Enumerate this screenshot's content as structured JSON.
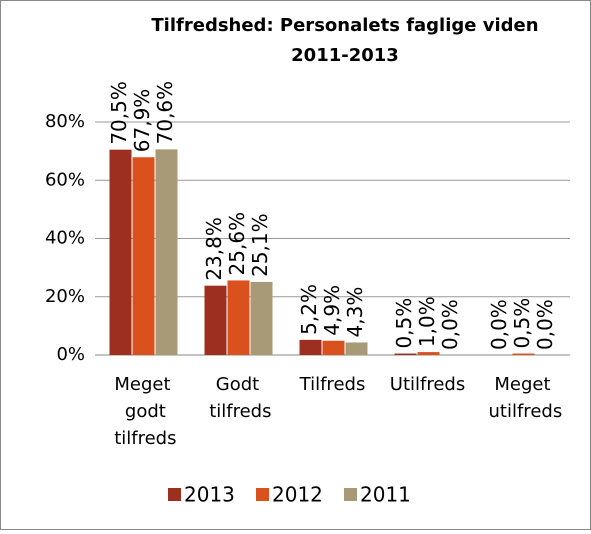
{
  "chart_data": {
    "type": "bar",
    "title": "Tilfredshed: Personalets faglige viden 2011-2013",
    "categories": [
      "Meget godt tilfreds",
      "Godt tilfreds",
      "Tilfreds",
      "Utilfreds",
      "Meget utilfreds"
    ],
    "series": [
      {
        "name": "2013",
        "color": "#9c2f1f",
        "values": [
          70.5,
          23.8,
          5.2,
          0.5,
          0.0
        ],
        "value_labels": [
          "70,5%",
          "23,8%",
          "5,2%",
          "0,5%",
          "0,0%"
        ]
      },
      {
        "name": "2012",
        "color": "#d9511d",
        "values": [
          67.9,
          25.6,
          4.9,
          1.0,
          0.5
        ],
        "value_labels": [
          "67,9%",
          "25,6%",
          "4,9%",
          "1,0%",
          "0,5%"
        ]
      },
      {
        "name": "2011",
        "color": "#a89a77",
        "values": [
          70.6,
          25.1,
          4.3,
          0.0,
          0.0
        ],
        "value_labels": [
          "70,6%",
          "25,1%",
          "4,3%",
          "0,0%",
          "0,0%"
        ]
      }
    ],
    "ylim": [
      0,
      80
    ],
    "yticks": [
      {
        "value": 0,
        "label": "0%"
      },
      {
        "value": 20,
        "label": "20%"
      },
      {
        "value": 40,
        "label": "40%"
      },
      {
        "value": 60,
        "label": "60%"
      },
      {
        "value": 80,
        "label": "80%"
      }
    ],
    "grid": true,
    "legend": "bottom"
  }
}
